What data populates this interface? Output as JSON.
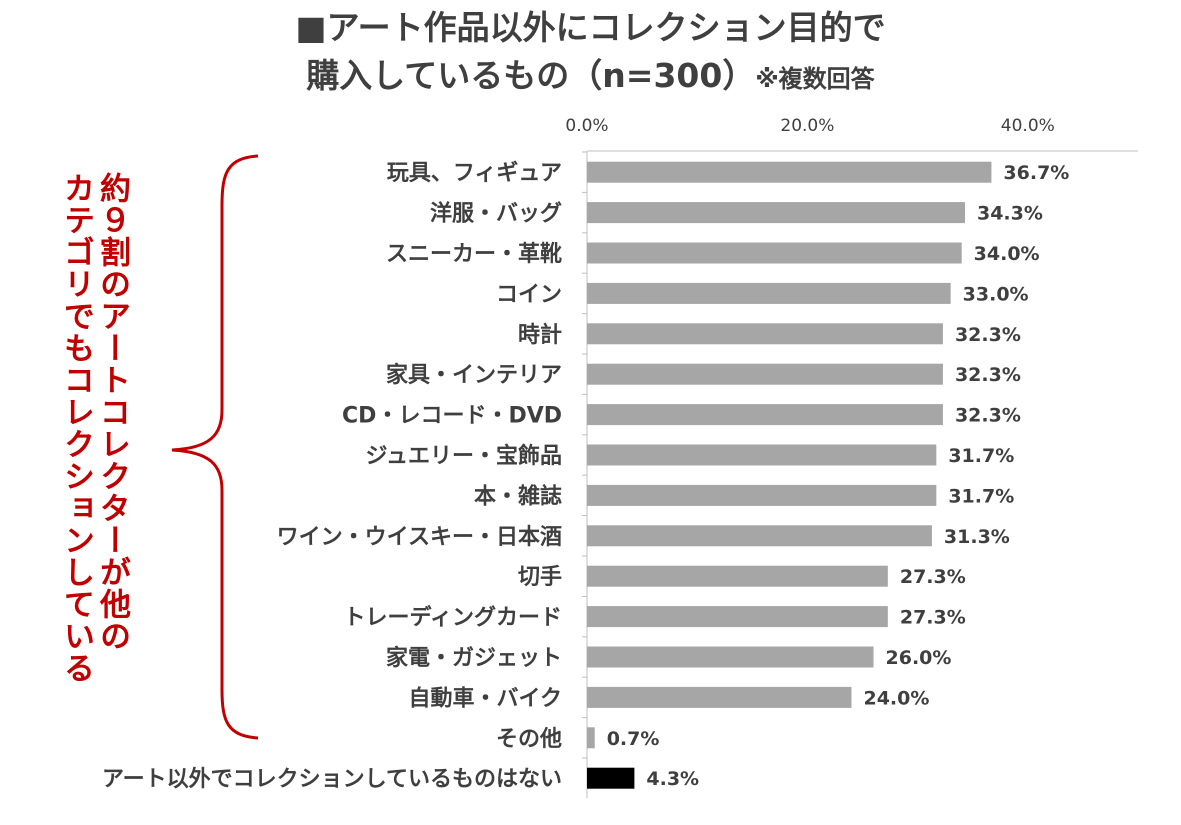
{
  "title": {
    "line1": "■アート作品以外にコレクション目的で",
    "line2": "購入しているもの（n=300）",
    "note": "※複数回答"
  },
  "annotation": {
    "line1": "約９割のアートコレクターが他の",
    "line2": "カテゴリでもコレクションしている"
  },
  "colors": {
    "bar": "#a6a6a6",
    "highlight_bar": "#000000",
    "annotation": "#c00000",
    "text": "#3f3f3f"
  },
  "chart_data": {
    "type": "bar",
    "orientation": "horizontal",
    "categories": [
      "玩具、フィギュア",
      "洋服・バッグ",
      "スニーカー・革靴",
      "コイン",
      "時計",
      "家具・インテリア",
      "CD・レコード・DVD",
      "ジュエリー・宝飾品",
      "本・雑誌",
      "ワイン・ウイスキー・日本酒",
      "切手",
      "トレーディングカード",
      "家電・ガジェット",
      "自動車・バイク",
      "その他",
      "アート以外でコレクションしているものはない"
    ],
    "values": [
      36.7,
      34.3,
      34.0,
      33.0,
      32.3,
      32.3,
      32.3,
      31.7,
      31.7,
      31.3,
      27.3,
      27.3,
      26.0,
      24.0,
      0.7,
      4.3
    ],
    "value_labels": [
      "36.7%",
      "34.3%",
      "34.0%",
      "33.0%",
      "32.3%",
      "32.3%",
      "32.3%",
      "31.7%",
      "31.7%",
      "31.3%",
      "27.3%",
      "27.3%",
      "26.0%",
      "24.0%",
      "0.7%",
      "4.3%"
    ],
    "highlight_index": 15,
    "xlim": [
      0,
      50
    ],
    "xticks": [
      0,
      20,
      40
    ],
    "xtick_labels": [
      "0.0%",
      "20.0%",
      "40.0%"
    ],
    "axis_position": "top",
    "grid": false
  }
}
